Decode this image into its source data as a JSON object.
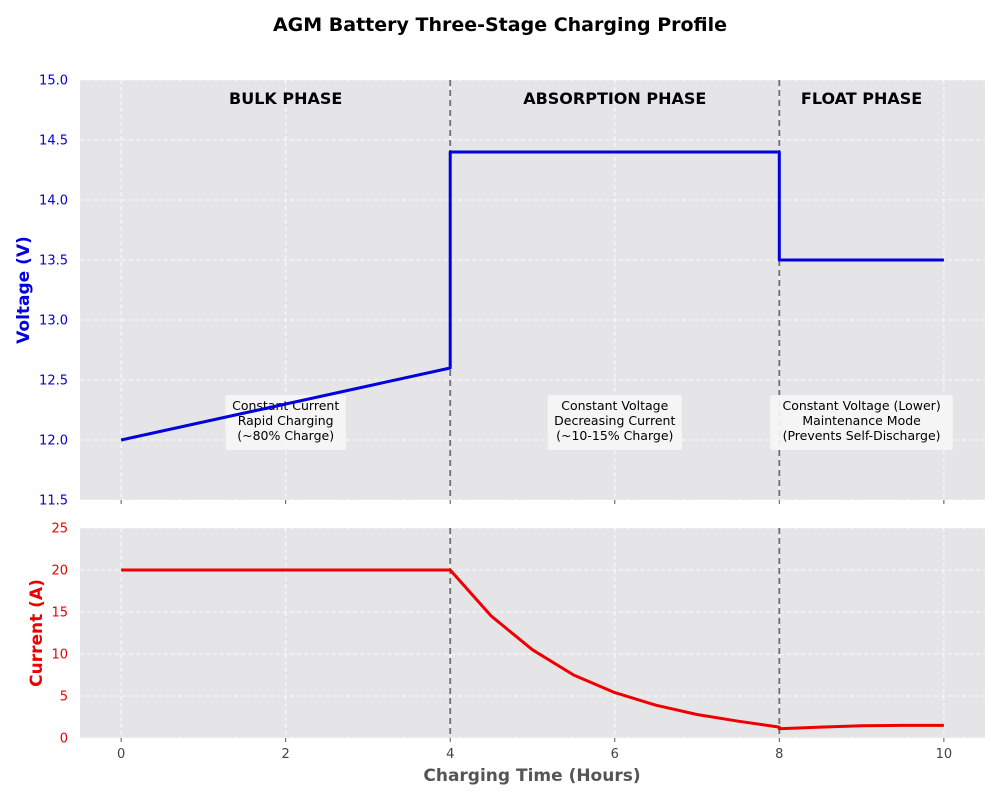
{
  "title": "AGM Battery Three-Stage Charging Profile",
  "colors": {
    "voltage": "#0000e0",
    "current": "#ee0000",
    "plot_bg": "#e5e5e8",
    "grid": "#ffffff",
    "phase_line": "#707070",
    "xlabel": "#555555"
  },
  "chart_data": [
    {
      "type": "line",
      "name": "voltage-panel",
      "ylabel": "Voltage (V)",
      "ylim": [
        11.5,
        15.0
      ],
      "yticks": [
        "11.5",
        "12.0",
        "12.5",
        "13.0",
        "13.5",
        "14.0",
        "14.5",
        "15.0"
      ],
      "xlim": [
        -0.5,
        10.5
      ],
      "grid": true,
      "phase_boundaries": [
        4,
        8
      ],
      "phase_labels": [
        {
          "label": "BULK PHASE",
          "x": 2
        },
        {
          "label": "ABSORPTION PHASE",
          "x": 6
        },
        {
          "label": "FLOAT PHASE",
          "x": 9
        }
      ],
      "annotations": [
        {
          "x": 2,
          "lines": [
            "Constant Current",
            "Rapid Charging",
            "(~80% Charge)"
          ]
        },
        {
          "x": 6,
          "lines": [
            "Constant Voltage",
            "Decreasing Current",
            "(~10-15% Charge)"
          ]
        },
        {
          "x": 9,
          "lines": [
            "Constant Voltage (Lower)",
            "Maintenance Mode",
            "(Prevents Self-Discharge)"
          ]
        }
      ],
      "series": [
        {
          "x": [
            0,
            4,
            4,
            8,
            8,
            10
          ],
          "y": [
            12.0,
            12.6,
            14.4,
            14.4,
            13.5,
            13.5
          ]
        }
      ]
    },
    {
      "type": "line",
      "name": "current-panel",
      "ylabel": "Current (A)",
      "xlabel": "Charging Time (Hours)",
      "ylim": [
        0,
        25
      ],
      "yticks": [
        "0",
        "5",
        "10",
        "15",
        "20",
        "25"
      ],
      "xlim": [
        -0.5,
        10.5
      ],
      "xticks": [
        "0",
        "2",
        "4",
        "6",
        "8",
        "10"
      ],
      "grid": true,
      "phase_boundaries": [
        4,
        8
      ],
      "series": [
        {
          "x": [
            0,
            4,
            4.5,
            5,
            5.5,
            6,
            6.5,
            7,
            7.5,
            8,
            8,
            8.5,
            9,
            9.5,
            10
          ],
          "y": [
            20,
            20,
            14.5,
            10.5,
            7.5,
            5.4,
            3.9,
            2.8,
            2.0,
            1.3,
            1.1,
            1.3,
            1.45,
            1.5,
            1.5
          ]
        }
      ]
    }
  ]
}
